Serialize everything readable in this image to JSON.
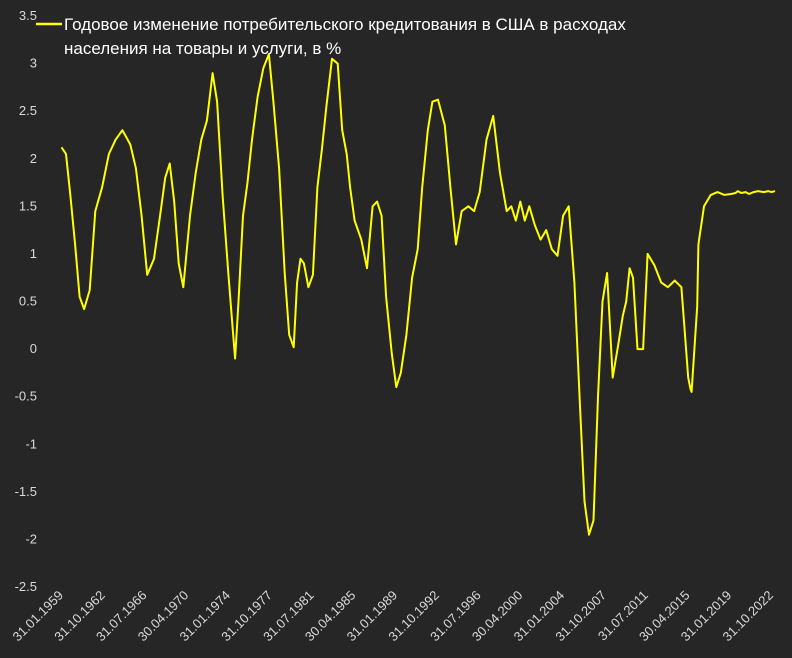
{
  "chart_data": {
    "type": "line",
    "title": "Годовое изменение потребительского кредитования в США в расходах населения на товары и услуги, в %",
    "title_lines": [
      "Годовое изменение потребительского кредитования в США в расходах",
      "населения на товары и услуги, в %"
    ],
    "xlabel": "",
    "ylabel": "",
    "ylim": [
      -2.5,
      3.5
    ],
    "y_ticks": [
      "3.5",
      "3",
      "2.5",
      "2",
      "1.5",
      "1",
      "0.5",
      "0",
      "-0.5",
      "-1",
      "-1.5",
      "-2",
      "-2.5"
    ],
    "x_ticks": [
      "31.01.1959",
      "31.10.1962",
      "31.07.1966",
      "30.04.1970",
      "31.01.1974",
      "31.10.1977",
      "31.07.1981",
      "30.04.1985",
      "31.01.1989",
      "31.10.1992",
      "31.07.1996",
      "30.04.2000",
      "31.01.2004",
      "31.10.2007",
      "31.07.2011",
      "30.04.2015",
      "31.01.2019",
      "31.10.2022"
    ],
    "xlim": [
      1959.0,
      2023.5
    ],
    "grid": false,
    "legend": "top-left",
    "series": [
      {
        "color": "#ffff00",
        "x": [
          1960.2,
          1960.6,
          1961.0,
          1961.4,
          1961.8,
          1962.2,
          1962.7,
          1963.2,
          1963.8,
          1964.4,
          1965.0,
          1965.6,
          1966.3,
          1966.8,
          1967.3,
          1967.8,
          1968.4,
          1969.0,
          1969.4,
          1969.8,
          1970.2,
          1970.6,
          1971.0,
          1971.6,
          1972.1,
          1972.6,
          1973.1,
          1973.6,
          1974.0,
          1974.5,
          1975.0,
          1975.4,
          1975.6,
          1975.9,
          1976.3,
          1976.7,
          1977.1,
          1977.6,
          1978.1,
          1978.6,
          1979.0,
          1979.5,
          1980.0,
          1980.4,
          1980.8,
          1981.1,
          1981.4,
          1981.7,
          1982.1,
          1982.5,
          1982.9,
          1983.3,
          1983.7,
          1984.2,
          1984.7,
          1985.1,
          1985.5,
          1985.8,
          1986.2,
          1986.8,
          1987.3,
          1987.8,
          1988.2,
          1988.6,
          1989.0,
          1989.5,
          1989.9,
          1990.3,
          1990.8,
          1991.3,
          1991.8,
          1992.2,
          1992.7,
          1993.1,
          1993.6,
          1994.2,
          1994.7,
          1995.2,
          1995.7,
          1996.3,
          1996.8,
          1997.3,
          1997.9,
          1998.5,
          1999.1,
          1999.7,
          2000.1,
          2000.5,
          2000.9,
          2001.3,
          2001.7,
          2002.2,
          2002.7,
          2003.2,
          2003.7,
          2004.2,
          2004.7,
          2005.2,
          2005.7,
          2006.2,
          2006.6,
          2007.0,
          2007.4,
          2007.8,
          2008.2,
          2008.6,
          2009.1,
          2009.6,
          2010.0,
          2010.3,
          2010.6,
          2010.9,
          2011.3,
          2011.8,
          2012.2,
          2012.8,
          2013.4,
          2014.0,
          2014.6,
          2015.2,
          2015.8,
          2016.0,
          2016.1,
          2016.6,
          2016.7,
          2017.2,
          2017.8,
          2018.4,
          2019.0,
          2019.6,
          2020.0,
          2020.2,
          2020.5,
          2020.9,
          2021.2,
          2021.6,
          2022.0,
          2022.5,
          2022.9,
          2023.2,
          2023.5
        ],
        "values": [
          2.12,
          2.05,
          1.6,
          1.1,
          0.55,
          0.42,
          0.62,
          1.45,
          1.7,
          2.05,
          2.2,
          2.3,
          2.15,
          1.9,
          1.4,
          0.78,
          0.95,
          1.45,
          1.8,
          1.95,
          1.55,
          0.9,
          0.65,
          1.4,
          1.85,
          2.2,
          2.4,
          2.9,
          2.6,
          1.6,
          0.8,
          0.2,
          -0.1,
          0.5,
          1.4,
          1.75,
          2.2,
          2.65,
          2.95,
          3.1,
          2.6,
          1.9,
          0.8,
          0.15,
          0.02,
          0.7,
          0.95,
          0.9,
          0.65,
          0.78,
          1.7,
          2.1,
          2.55,
          3.05,
          3.0,
          2.3,
          2.05,
          1.7,
          1.35,
          1.15,
          0.85,
          1.5,
          1.55,
          1.4,
          0.55,
          -0.05,
          -0.4,
          -0.25,
          0.15,
          0.75,
          1.05,
          1.7,
          2.3,
          2.6,
          2.62,
          2.35,
          1.7,
          1.1,
          1.45,
          1.5,
          1.45,
          1.65,
          2.2,
          2.45,
          1.85,
          1.45,
          1.5,
          1.35,
          1.55,
          1.35,
          1.5,
          1.3,
          1.15,
          1.25,
          1.05,
          0.98,
          1.4,
          1.5,
          0.7,
          -0.6,
          -1.6,
          -1.95,
          -1.8,
          -0.5,
          0.5,
          0.8,
          -0.3,
          0.05,
          0.35,
          0.5,
          0.85,
          0.75,
          0.0,
          0.0,
          1.0,
          0.88,
          0.7,
          0.65,
          0.72,
          0.65,
          -0.3,
          -0.42,
          -0.45,
          0.45,
          1.1,
          1.5,
          1.62,
          1.65,
          1.62,
          1.63,
          1.64,
          1.66,
          1.64,
          1.65,
          1.63,
          1.65,
          1.66,
          1.65,
          1.66,
          1.65,
          1.66
        ]
      }
    ]
  }
}
